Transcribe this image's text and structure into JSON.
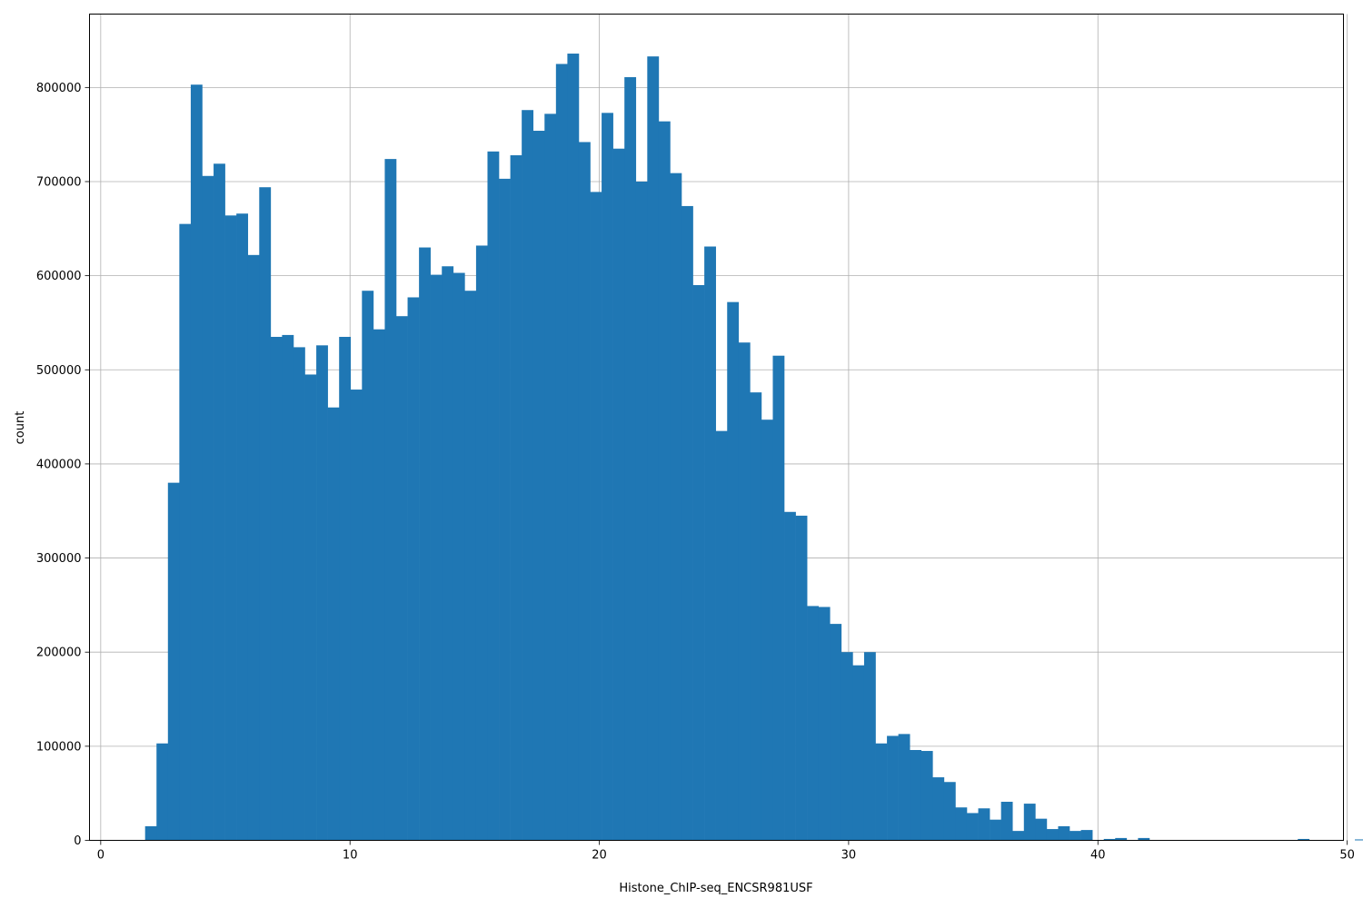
{
  "chart_data": {
    "type": "bar",
    "title": "",
    "xlabel": "Histone_ChIP-seq_ENCSR981USF",
    "ylabel": "count",
    "xlim": [
      -0.45,
      49.85
    ],
    "ylim": [
      0,
      878000
    ],
    "xticks": [
      0,
      10,
      20,
      30,
      40,
      50
    ],
    "yticks": [
      0,
      100000,
      200000,
      300000,
      400000,
      500000,
      600000,
      700000,
      800000
    ],
    "grid": true,
    "bar_color": "#1f77b4",
    "bins": {
      "start": 1.78,
      "width": 0.4578,
      "counts": [
        15000,
        103000,
        380000,
        655000,
        803000,
        706000,
        719000,
        664000,
        666000,
        622000,
        694000,
        535000,
        537000,
        524000,
        495000,
        526000,
        460000,
        535000,
        479000,
        584000,
        543000,
        724000,
        557000,
        577000,
        630000,
        601000,
        610000,
        603000,
        584000,
        632000,
        732000,
        703000,
        728000,
        776000,
        754000,
        772000,
        825000,
        836000,
        742000,
        689000,
        773000,
        735000,
        811000,
        700000,
        833000,
        764000,
        709000,
        674000,
        590000,
        631000,
        435000,
        572000,
        529000,
        476000,
        447000,
        515000,
        349000,
        345000,
        249000,
        248000,
        230000,
        200000,
        186000,
        200000,
        103000,
        111000,
        113000,
        96000,
        95000,
        67000,
        62000,
        35000,
        29000,
        34000,
        22000,
        41000,
        10000,
        39000,
        23000,
        12000,
        15000,
        10000,
        11000,
        0,
        1500,
        2500,
        0,
        2500,
        0,
        0,
        0,
        0,
        0,
        0,
        0,
        0,
        0,
        0,
        0,
        0,
        0,
        1500,
        0,
        0,
        0,
        0,
        1000
      ]
    }
  }
}
